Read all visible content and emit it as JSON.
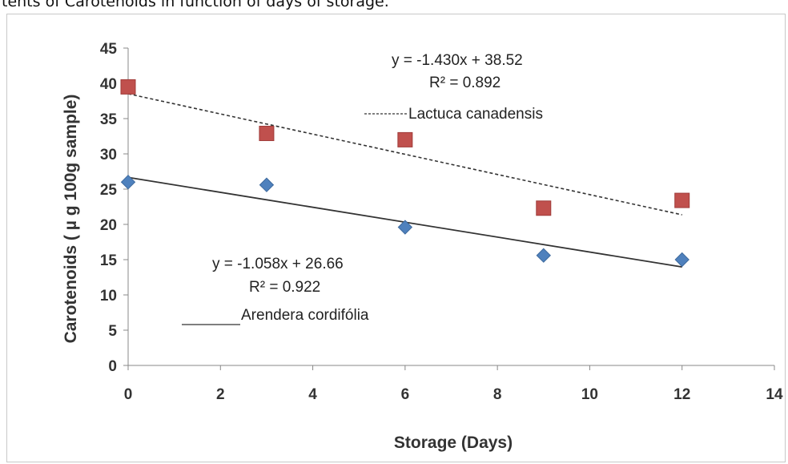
{
  "caption": "tents of Carotenoids in function of days of storage.",
  "chart_data": {
    "type": "scatter",
    "xlabel": "Storage (Days)",
    "ylabel": "Carotenoids ( µ g 100g sample)",
    "xlim": [
      0,
      14
    ],
    "ylim": [
      0,
      45
    ],
    "x_ticks": [
      "0",
      "2",
      "4",
      "6",
      "8",
      "10",
      "12",
      "14"
    ],
    "y_ticks": [
      "0",
      "5",
      "10",
      "15",
      "20",
      "25",
      "30",
      "35",
      "40",
      "45"
    ],
    "grid": false,
    "series": [
      {
        "name": "Lactuca canadensis",
        "marker": "square",
        "color": "#c0504d",
        "x": [
          0,
          3,
          6,
          9,
          12
        ],
        "y": [
          39.5,
          32.9,
          32.0,
          22.3,
          23.4
        ],
        "trendline": {
          "style": "dashed",
          "slope": -1.43,
          "intercept": 38.52,
          "x_range": [
            0,
            12
          ],
          "equation": "y = -1.430x + 38.52",
          "r2": "R² = 0.892"
        }
      },
      {
        "name": "Arendera cordifólia",
        "marker": "diamond",
        "color": "#4f81bd",
        "x": [
          0,
          3,
          6,
          9,
          12
        ],
        "y": [
          26.0,
          25.6,
          19.6,
          15.6,
          15.0
        ],
        "trendline": {
          "style": "solid",
          "slope": -1.058,
          "intercept": 26.66,
          "x_range": [
            0,
            12
          ],
          "equation": "y = -1.058x + 26.66",
          "r2": "R² = 0.922"
        }
      }
    ]
  }
}
